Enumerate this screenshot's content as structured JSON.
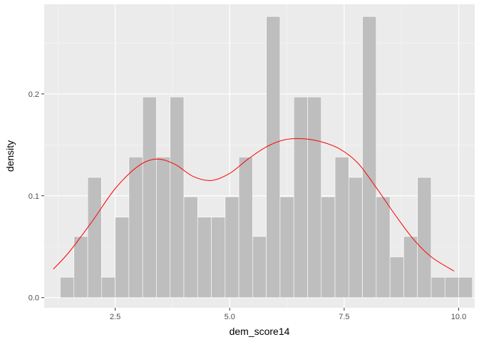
{
  "chart_data": {
    "type": "bar",
    "subtype": "histogram-with-density",
    "xlabel": "dem_score14",
    "ylabel": "density",
    "xlim": [
      0.95,
      10.35
    ],
    "ylim": [
      -0.01,
      0.288
    ],
    "x_ticks": [
      2.5,
      5.0,
      7.5,
      10.0
    ],
    "x_tick_labels": [
      "2.5",
      "5.0",
      "7.5",
      "10.0"
    ],
    "y_ticks": [
      0.0,
      0.1,
      0.2
    ],
    "y_tick_labels": [
      "0.0",
      "0.1",
      "0.2"
    ],
    "bin_width": 0.3,
    "bins": [
      {
        "x0": 1.0,
        "x1": 1.3,
        "density": 0.0
      },
      {
        "x0": 1.3,
        "x1": 1.6,
        "density": 0.02
      },
      {
        "x0": 1.6,
        "x1": 1.9,
        "density": 0.06
      },
      {
        "x0": 1.9,
        "x1": 2.2,
        "density": 0.118
      },
      {
        "x0": 2.2,
        "x1": 2.5,
        "density": 0.02
      },
      {
        "x0": 2.5,
        "x1": 2.8,
        "density": 0.079
      },
      {
        "x0": 2.8,
        "x1": 3.1,
        "density": 0.138
      },
      {
        "x0": 3.1,
        "x1": 3.4,
        "density": 0.197
      },
      {
        "x0": 3.4,
        "x1": 3.7,
        "density": 0.138
      },
      {
        "x0": 3.7,
        "x1": 4.0,
        "density": 0.197
      },
      {
        "x0": 4.0,
        "x1": 4.3,
        "density": 0.099
      },
      {
        "x0": 4.3,
        "x1": 4.6,
        "density": 0.079
      },
      {
        "x0": 4.6,
        "x1": 4.9,
        "density": 0.079
      },
      {
        "x0": 4.9,
        "x1": 5.2,
        "density": 0.099
      },
      {
        "x0": 5.2,
        "x1": 5.5,
        "density": 0.138
      },
      {
        "x0": 5.5,
        "x1": 5.8,
        "density": 0.06
      },
      {
        "x0": 5.8,
        "x1": 6.1,
        "density": 0.276
      },
      {
        "x0": 6.1,
        "x1": 6.4,
        "density": 0.099
      },
      {
        "x0": 6.4,
        "x1": 6.7,
        "density": 0.197
      },
      {
        "x0": 6.7,
        "x1": 7.0,
        "density": 0.197
      },
      {
        "x0": 7.0,
        "x1": 7.3,
        "density": 0.099
      },
      {
        "x0": 7.3,
        "x1": 7.6,
        "density": 0.138
      },
      {
        "x0": 7.6,
        "x1": 7.9,
        "density": 0.118
      },
      {
        "x0": 7.9,
        "x1": 8.2,
        "density": 0.276
      },
      {
        "x0": 8.2,
        "x1": 8.5,
        "density": 0.099
      },
      {
        "x0": 8.5,
        "x1": 8.8,
        "density": 0.04
      },
      {
        "x0": 8.8,
        "x1": 9.1,
        "density": 0.06
      },
      {
        "x0": 9.1,
        "x1": 9.4,
        "density": 0.118
      },
      {
        "x0": 9.4,
        "x1": 9.7,
        "density": 0.02
      },
      {
        "x0": 9.7,
        "x1": 10.0,
        "density": 0.02
      },
      {
        "x0": 10.0,
        "x1": 10.3,
        "density": 0.02
      }
    ],
    "density_curve": {
      "x": [
        1.15,
        1.5,
        2.0,
        2.5,
        3.0,
        3.4,
        3.8,
        4.2,
        4.6,
        5.0,
        5.4,
        5.8,
        6.2,
        6.6,
        7.0,
        7.4,
        7.8,
        8.2,
        8.6,
        9.0,
        9.4,
        9.9
      ],
      "y": [
        0.028,
        0.045,
        0.075,
        0.107,
        0.129,
        0.136,
        0.131,
        0.119,
        0.115,
        0.122,
        0.136,
        0.148,
        0.155,
        0.156,
        0.153,
        0.146,
        0.132,
        0.108,
        0.082,
        0.058,
        0.04,
        0.026
      ]
    },
    "grid": true,
    "legend": "none",
    "colors": {
      "panel_background": "#ebebeb",
      "grid_major": "#ffffff",
      "grid_minor": "#f5f5f5",
      "bar_fill": "#bebebe",
      "bar_outline": "#ffffff",
      "density_line": "#ff0000",
      "tick_text": "#4d4d4d",
      "tick_mark": "#333333"
    }
  }
}
